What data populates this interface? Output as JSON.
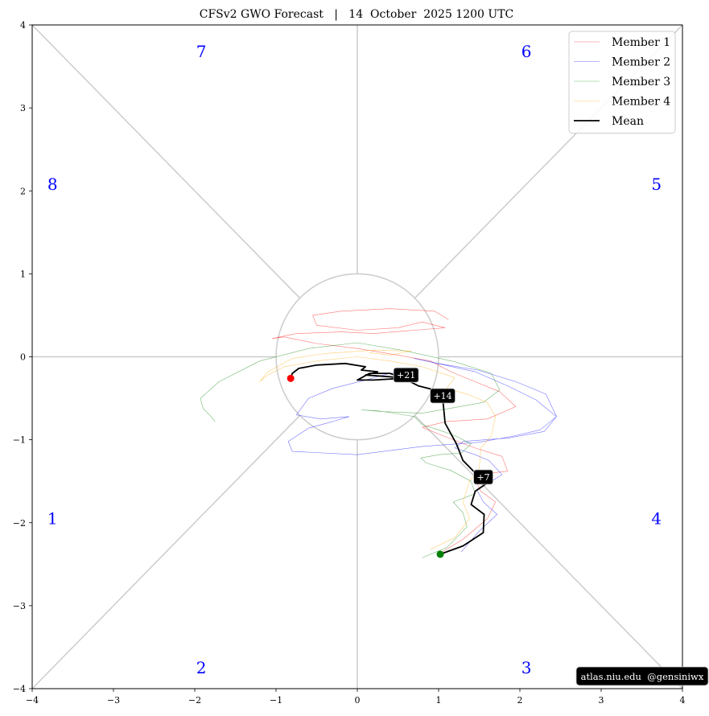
{
  "chart_data": {
    "type": "line",
    "title": "CFSv2 GWO Forecast   |   14  October  2025 1200 UTC",
    "xlim": [
      -4,
      4
    ],
    "ylim": [
      -4,
      4
    ],
    "xticks": [
      -4,
      -3,
      -2,
      -1,
      0,
      1,
      2,
      3,
      4
    ],
    "yticks": [
      -4,
      -3,
      -2,
      -1,
      0,
      1,
      2,
      3,
      4
    ],
    "xtick_labels": [
      "−4",
      "−3",
      "−2",
      "−1",
      "0",
      "1",
      "2",
      "3",
      "4"
    ],
    "ytick_labels": [
      "−4",
      "−3",
      "−2",
      "−1",
      "0",
      "1",
      "2",
      "3",
      "4"
    ],
    "grid": false,
    "unit_circle_radius": 1,
    "phase_labels": [
      {
        "text": "1",
        "x": -3.75,
        "y": -1.95
      },
      {
        "text": "2",
        "x": -1.92,
        "y": -3.75
      },
      {
        "text": "3",
        "x": 2.08,
        "y": -3.75
      },
      {
        "text": "4",
        "x": 3.68,
        "y": -1.95
      },
      {
        "text": "5",
        "x": 3.68,
        "y": 2.08
      },
      {
        "text": "6",
        "x": 2.08,
        "y": 3.68
      },
      {
        "text": "7",
        "x": -1.92,
        "y": 3.68
      },
      {
        "text": "8",
        "x": -3.75,
        "y": 2.08
      }
    ],
    "legend_position": "top-right",
    "series": [
      {
        "name": "Member 1",
        "color": "#ff0000",
        "width": 0.6,
        "opacity": 0.55,
        "points": [
          [
            1.0,
            -2.38
          ],
          [
            1.3,
            -2.2
          ],
          [
            1.6,
            -1.95
          ],
          [
            1.7,
            -1.75
          ],
          [
            1.52,
            -1.62
          ],
          [
            1.45,
            -1.48
          ],
          [
            1.65,
            -1.4
          ],
          [
            1.85,
            -1.38
          ],
          [
            1.78,
            -1.2
          ],
          [
            1.45,
            -1.1
          ],
          [
            1.05,
            -0.95
          ],
          [
            0.8,
            -0.85
          ],
          [
            1.1,
            -0.78
          ],
          [
            1.6,
            -0.75
          ],
          [
            1.95,
            -0.6
          ],
          [
            1.75,
            -0.42
          ],
          [
            1.4,
            -0.28
          ],
          [
            1.15,
            -0.18
          ],
          [
            0.9,
            -0.05
          ],
          [
            0.5,
            0.02
          ],
          [
            0.0,
            0.1
          ],
          [
            -0.5,
            0.16
          ],
          [
            -0.9,
            0.24
          ],
          [
            -1.05,
            0.22
          ],
          [
            -0.75,
            0.28
          ],
          [
            -0.2,
            0.3
          ],
          [
            0.2,
            0.28
          ],
          [
            0.7,
            0.32
          ],
          [
            1.08,
            0.35
          ],
          [
            0.8,
            0.42
          ],
          [
            0.5,
            0.35
          ],
          [
            0.0,
            0.32
          ],
          [
            -0.5,
            0.38
          ],
          [
            -0.55,
            0.5
          ],
          [
            -0.2,
            0.55
          ],
          [
            0.4,
            0.58
          ],
          [
            0.95,
            0.55
          ],
          [
            1.12,
            0.45
          ]
        ]
      },
      {
        "name": "Member 2",
        "color": "#0000ff",
        "width": 0.6,
        "opacity": 0.55,
        "points": [
          [
            1.28,
            -2.35
          ],
          [
            1.5,
            -2.1
          ],
          [
            1.72,
            -1.9
          ],
          [
            1.55,
            -1.75
          ],
          [
            1.47,
            -1.6
          ],
          [
            1.62,
            -1.52
          ],
          [
            1.78,
            -1.42
          ],
          [
            1.62,
            -1.25
          ],
          [
            1.45,
            -1.18
          ],
          [
            1.2,
            -1.1
          ],
          [
            1.3,
            -1.02
          ],
          [
            1.85,
            -0.98
          ],
          [
            2.3,
            -0.9
          ],
          [
            2.45,
            -0.72
          ],
          [
            2.2,
            -0.52
          ],
          [
            1.85,
            -0.35
          ],
          [
            1.45,
            -0.18
          ],
          [
            0.7,
            -0.02
          ],
          [
            1.0,
            -0.08
          ],
          [
            1.48,
            -0.16
          ],
          [
            1.95,
            -0.3
          ],
          [
            2.32,
            -0.45
          ],
          [
            2.45,
            -0.72
          ],
          [
            2.25,
            -0.88
          ],
          [
            1.9,
            -0.96
          ],
          [
            1.5,
            -1.03
          ],
          [
            0.8,
            -1.08
          ],
          [
            0.0,
            -1.18
          ],
          [
            -0.8,
            -1.14
          ],
          [
            -0.85,
            -1.02
          ],
          [
            -0.6,
            -0.86
          ],
          [
            -0.3,
            -0.78
          ],
          [
            -0.1,
            -0.72
          ],
          [
            -0.45,
            -0.75
          ],
          [
            -0.75,
            -0.7
          ],
          [
            -0.6,
            -0.5
          ],
          [
            -0.3,
            -0.38
          ],
          [
            0.1,
            -0.28
          ],
          [
            0.4,
            -0.2
          ],
          [
            0.6,
            -0.18
          ]
        ]
      },
      {
        "name": "Member 3",
        "color": "#008000",
        "width": 0.6,
        "opacity": 0.55,
        "points": [
          [
            0.8,
            -2.42
          ],
          [
            1.1,
            -2.3
          ],
          [
            1.35,
            -2.05
          ],
          [
            1.3,
            -1.88
          ],
          [
            1.18,
            -1.75
          ],
          [
            1.45,
            -1.65
          ],
          [
            1.4,
            -1.5
          ],
          [
            1.15,
            -1.37
          ],
          [
            0.85,
            -1.28
          ],
          [
            0.78,
            -1.22
          ],
          [
            1.0,
            -1.18
          ],
          [
            1.28,
            -1.16
          ],
          [
            1.4,
            -1.05
          ],
          [
            1.2,
            -0.95
          ],
          [
            1.0,
            -0.88
          ],
          [
            0.8,
            -0.82
          ],
          [
            0.7,
            -0.72
          ],
          [
            0.25,
            -0.65
          ],
          [
            0.05,
            -0.64
          ],
          [
            0.3,
            -0.66
          ],
          [
            0.8,
            -0.68
          ],
          [
            1.15,
            -0.62
          ],
          [
            1.55,
            -0.55
          ],
          [
            1.75,
            -0.4
          ],
          [
            1.65,
            -0.2
          ],
          [
            1.2,
            -0.06
          ],
          [
            0.6,
            0.07
          ],
          [
            0.0,
            0.17
          ],
          [
            -0.6,
            0.1
          ],
          [
            -1.2,
            -0.05
          ],
          [
            -1.7,
            -0.3
          ],
          [
            -1.93,
            -0.5
          ],
          [
            -1.9,
            -0.62
          ],
          [
            -1.8,
            -0.72
          ],
          [
            -1.75,
            -0.78
          ]
        ]
      },
      {
        "name": "Member 4",
        "color": "#ffa500",
        "width": 0.6,
        "opacity": 0.55,
        "points": [
          [
            0.9,
            -2.32
          ],
          [
            1.2,
            -2.18
          ],
          [
            1.38,
            -1.95
          ],
          [
            1.3,
            -1.75
          ],
          [
            1.38,
            -1.5
          ],
          [
            1.5,
            -1.35
          ],
          [
            1.52,
            -1.1
          ],
          [
            1.65,
            -0.95
          ],
          [
            1.7,
            -0.72
          ],
          [
            1.6,
            -0.55
          ],
          [
            1.35,
            -0.45
          ],
          [
            1.1,
            -0.38
          ],
          [
            1.2,
            -0.25
          ],
          [
            0.8,
            -0.12
          ],
          [
            0.4,
            -0.05
          ],
          [
            0.0,
            0.0
          ],
          [
            -0.5,
            -0.05
          ],
          [
            -0.9,
            -0.12
          ],
          [
            -1.1,
            -0.22
          ],
          [
            -1.2,
            -0.3
          ],
          [
            -1.1,
            -0.18
          ],
          [
            -0.8,
            -0.02
          ],
          [
            -0.4,
            0.04
          ],
          [
            0.2,
            0.08
          ],
          [
            0.66,
            0.07
          ],
          [
            0.4,
            0.02
          ],
          [
            0.15,
            0.05
          ]
        ]
      },
      {
        "name": "Mean",
        "color": "#000000",
        "width": 1.8,
        "opacity": 1,
        "points": [
          [
            1.02,
            -2.38
          ],
          [
            1.3,
            -2.28
          ],
          [
            1.55,
            -2.12
          ],
          [
            1.56,
            -1.9
          ],
          [
            1.4,
            -1.78
          ],
          [
            1.45,
            -1.62
          ],
          [
            1.6,
            -1.52
          ],
          [
            1.62,
            -1.48
          ],
          [
            1.45,
            -1.4
          ],
          [
            1.3,
            -1.25
          ],
          [
            1.22,
            -1.05
          ],
          [
            1.08,
            -0.8
          ],
          [
            1.06,
            -0.6
          ],
          [
            1.05,
            -0.48
          ],
          [
            0.95,
            -0.4
          ],
          [
            0.75,
            -0.35
          ],
          [
            0.55,
            -0.25
          ],
          [
            0.4,
            -0.2
          ],
          [
            0.15,
            -0.2
          ],
          [
            0.0,
            -0.28
          ],
          [
            0.2,
            -0.28
          ],
          [
            0.55,
            -0.26
          ],
          [
            0.4,
            -0.24
          ],
          [
            0.1,
            -0.22
          ],
          [
            0.25,
            -0.18
          ],
          [
            0.05,
            -0.16
          ],
          [
            0.1,
            -0.12
          ],
          [
            -0.15,
            -0.08
          ],
          [
            -0.5,
            -0.1
          ],
          [
            -0.72,
            -0.14
          ],
          [
            -0.8,
            -0.2
          ],
          [
            -0.82,
            -0.26
          ]
        ]
      }
    ],
    "start_marker": {
      "x": 1.02,
      "y": -2.38,
      "color": "#008000"
    },
    "end_marker": {
      "x": -0.82,
      "y": -0.26,
      "color": "#ff0000"
    },
    "lead_labels": [
      {
        "text": "+7",
        "x": 1.55,
        "y": -1.45
      },
      {
        "text": "+14",
        "x": 1.05,
        "y": -0.47
      },
      {
        "text": "+21",
        "x": 0.6,
        "y": -0.22
      }
    ],
    "credit": "atlas.niu.edu  @gensiniwx"
  }
}
